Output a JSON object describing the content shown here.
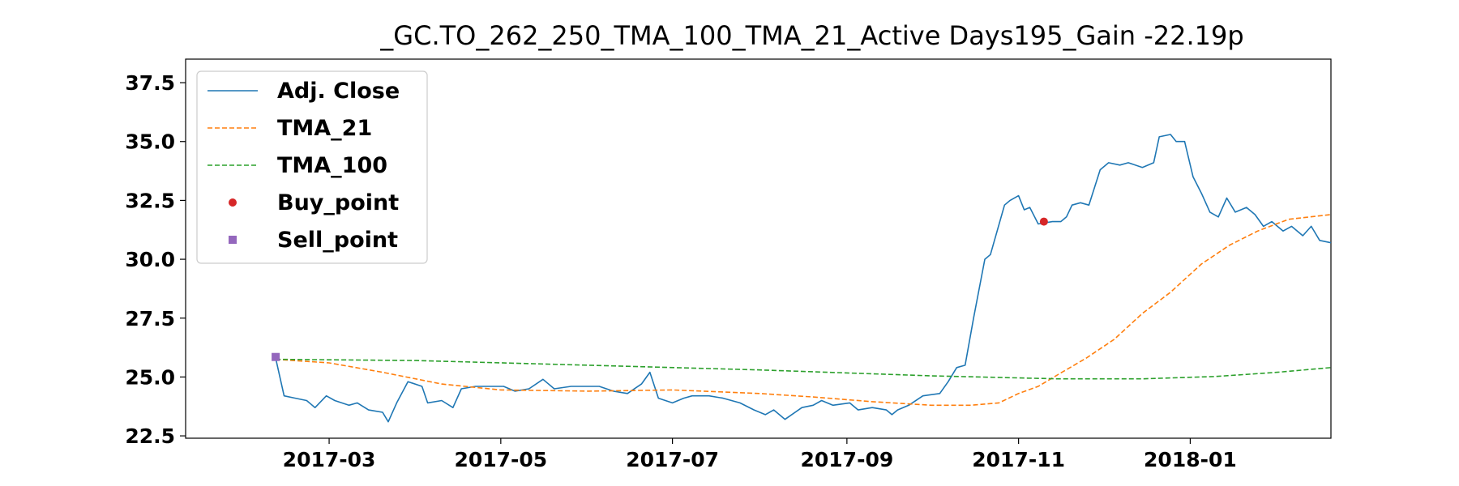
{
  "chart_data": {
    "type": "line",
    "title": "_GC.TO_262_250_TMA_100_TMA_21_Active Days195_Gain -22.19p",
    "xlabel": "",
    "ylabel": "",
    "xlim": [
      "2017-01-09",
      "2018-02-20"
    ],
    "ylim": [
      22.4,
      38.5
    ],
    "x_ticks": [
      "2017-03",
      "2017-05",
      "2017-07",
      "2017-09",
      "2017-11",
      "2018-01"
    ],
    "y_ticks": [
      "22.5",
      "25.0",
      "27.5",
      "30.0",
      "32.5",
      "35.0",
      "37.5"
    ],
    "grid": false,
    "legend_position": "upper-left",
    "series": [
      {
        "name": "Adj. Close",
        "color": "#1f77b4",
        "style": "solid",
        "points": [
          [
            "2017-02-10",
            25.8
          ],
          [
            "2017-02-13",
            24.2
          ],
          [
            "2017-02-17",
            24.1
          ],
          [
            "2017-02-21",
            24.0
          ],
          [
            "2017-02-24",
            23.7
          ],
          [
            "2017-02-28",
            24.2
          ],
          [
            "2017-03-03",
            24.0
          ],
          [
            "2017-03-08",
            23.8
          ],
          [
            "2017-03-11",
            23.9
          ],
          [
            "2017-03-15",
            23.6
          ],
          [
            "2017-03-20",
            23.5
          ],
          [
            "2017-03-22",
            23.1
          ],
          [
            "2017-03-25",
            23.9
          ],
          [
            "2017-03-29",
            24.8
          ],
          [
            "2017-04-03",
            24.6
          ],
          [
            "2017-04-05",
            23.9
          ],
          [
            "2017-04-10",
            24.0
          ],
          [
            "2017-04-14",
            23.7
          ],
          [
            "2017-04-17",
            24.5
          ],
          [
            "2017-04-22",
            24.6
          ],
          [
            "2017-04-28",
            24.6
          ],
          [
            "2017-05-02",
            24.6
          ],
          [
            "2017-05-06",
            24.4
          ],
          [
            "2017-05-11",
            24.5
          ],
          [
            "2017-05-16",
            24.9
          ],
          [
            "2017-05-20",
            24.5
          ],
          [
            "2017-05-26",
            24.6
          ],
          [
            "2017-06-01",
            24.6
          ],
          [
            "2017-06-05",
            24.6
          ],
          [
            "2017-06-10",
            24.4
          ],
          [
            "2017-06-15",
            24.3
          ],
          [
            "2017-06-20",
            24.7
          ],
          [
            "2017-06-23",
            25.2
          ],
          [
            "2017-06-26",
            24.1
          ],
          [
            "2017-07-01",
            23.9
          ],
          [
            "2017-07-05",
            24.1
          ],
          [
            "2017-07-08",
            24.2
          ],
          [
            "2017-07-14",
            24.2
          ],
          [
            "2017-07-19",
            24.1
          ],
          [
            "2017-07-25",
            23.9
          ],
          [
            "2017-07-30",
            23.6
          ],
          [
            "2017-08-03",
            23.4
          ],
          [
            "2017-08-06",
            23.6
          ],
          [
            "2017-08-10",
            23.2
          ],
          [
            "2017-08-16",
            23.7
          ],
          [
            "2017-08-20",
            23.8
          ],
          [
            "2017-08-23",
            24.0
          ],
          [
            "2017-08-27",
            23.8
          ],
          [
            "2017-09-02",
            23.9
          ],
          [
            "2017-09-05",
            23.6
          ],
          [
            "2017-09-10",
            23.7
          ],
          [
            "2017-09-15",
            23.6
          ],
          [
            "2017-09-17",
            23.4
          ],
          [
            "2017-09-19",
            23.6
          ],
          [
            "2017-09-23",
            23.8
          ],
          [
            "2017-09-28",
            24.2
          ],
          [
            "2017-10-04",
            24.3
          ],
          [
            "2017-10-07",
            24.8
          ],
          [
            "2017-10-10",
            25.4
          ],
          [
            "2017-10-13",
            25.5
          ],
          [
            "2017-10-16",
            27.5
          ],
          [
            "2017-10-20",
            30.0
          ],
          [
            "2017-10-22",
            30.2
          ],
          [
            "2017-10-27",
            32.3
          ],
          [
            "2017-10-29",
            32.5
          ],
          [
            "2017-11-01",
            32.7
          ],
          [
            "2017-11-03",
            32.1
          ],
          [
            "2017-11-05",
            32.2
          ],
          [
            "2017-11-08",
            31.5
          ],
          [
            "2017-11-13",
            31.6
          ],
          [
            "2017-11-16",
            31.6
          ],
          [
            "2017-11-18",
            31.8
          ],
          [
            "2017-11-20",
            32.3
          ],
          [
            "2017-11-23",
            32.4
          ],
          [
            "2017-11-26",
            32.3
          ],
          [
            "2017-11-30",
            33.8
          ],
          [
            "2017-12-03",
            34.1
          ],
          [
            "2017-12-07",
            34.0
          ],
          [
            "2017-12-10",
            34.1
          ],
          [
            "2017-12-15",
            33.9
          ],
          [
            "2017-12-19",
            34.1
          ],
          [
            "2017-12-21",
            35.2
          ],
          [
            "2017-12-25",
            35.3
          ],
          [
            "2017-12-27",
            35.0
          ],
          [
            "2017-12-30",
            35.0
          ],
          [
            "2018-01-02",
            33.5
          ],
          [
            "2018-01-05",
            32.8
          ],
          [
            "2018-01-08",
            32.0
          ],
          [
            "2018-01-11",
            31.8
          ],
          [
            "2018-01-14",
            32.6
          ],
          [
            "2018-01-17",
            32.0
          ],
          [
            "2018-01-21",
            32.2
          ],
          [
            "2018-01-24",
            31.9
          ],
          [
            "2018-01-27",
            31.4
          ],
          [
            "2018-01-30",
            31.6
          ],
          [
            "2018-02-03",
            31.2
          ],
          [
            "2018-02-06",
            31.4
          ],
          [
            "2018-02-10",
            31.0
          ],
          [
            "2018-02-13",
            31.4
          ],
          [
            "2018-02-16",
            30.8
          ],
          [
            "2018-02-20",
            30.7
          ]
        ]
      },
      {
        "name": "TMA_21",
        "color": "#ff7f0e",
        "style": "dashed",
        "points": [
          [
            "2017-02-10",
            25.75
          ],
          [
            "2017-03-01",
            25.6
          ],
          [
            "2017-03-20",
            25.2
          ],
          [
            "2017-04-10",
            24.7
          ],
          [
            "2017-05-01",
            24.45
          ],
          [
            "2017-06-01",
            24.4
          ],
          [
            "2017-07-01",
            24.45
          ],
          [
            "2017-08-01",
            24.3
          ],
          [
            "2017-08-20",
            24.15
          ],
          [
            "2017-09-10",
            23.95
          ],
          [
            "2017-10-01",
            23.8
          ],
          [
            "2017-10-15",
            23.8
          ],
          [
            "2017-10-25",
            23.9
          ],
          [
            "2017-11-01",
            24.3
          ],
          [
            "2017-11-08",
            24.6
          ],
          [
            "2017-11-15",
            25.1
          ],
          [
            "2017-11-25",
            25.8
          ],
          [
            "2017-12-05",
            26.6
          ],
          [
            "2017-12-15",
            27.7
          ],
          [
            "2017-12-25",
            28.6
          ],
          [
            "2018-01-05",
            29.8
          ],
          [
            "2018-01-15",
            30.6
          ],
          [
            "2018-01-25",
            31.2
          ],
          [
            "2018-02-05",
            31.7
          ],
          [
            "2018-02-20",
            31.9
          ]
        ]
      },
      {
        "name": "TMA_100",
        "color": "#2ca02c",
        "style": "dashed",
        "points": [
          [
            "2017-02-10",
            25.75
          ],
          [
            "2017-04-01",
            25.7
          ],
          [
            "2017-06-01",
            25.5
          ],
          [
            "2017-08-01",
            25.3
          ],
          [
            "2017-10-01",
            25.05
          ],
          [
            "2017-11-15",
            24.92
          ],
          [
            "2017-12-15",
            24.92
          ],
          [
            "2018-01-10",
            25.02
          ],
          [
            "2018-02-01",
            25.2
          ],
          [
            "2018-02-20",
            25.4
          ]
        ]
      }
    ],
    "markers": [
      {
        "name": "Buy_point",
        "shape": "circle",
        "color": "#d62728",
        "points": [
          [
            "2017-11-10",
            31.6
          ]
        ]
      },
      {
        "name": "Sell_point",
        "shape": "square",
        "color": "#9467bd",
        "points": [
          [
            "2017-02-10",
            25.85
          ]
        ]
      }
    ]
  }
}
